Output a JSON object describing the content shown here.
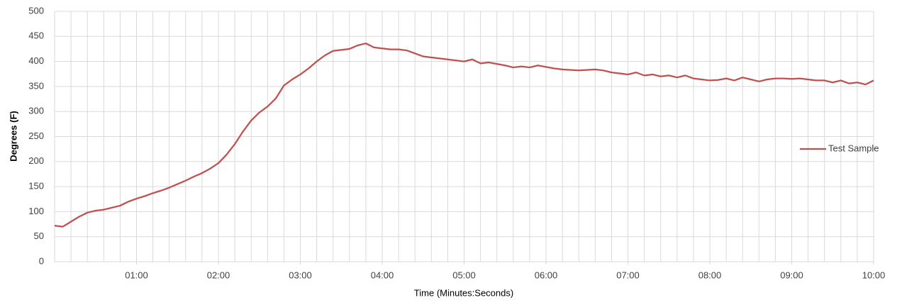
{
  "chart_data": {
    "type": "line",
    "x_label": "Time (Minutes:Seconds)",
    "y_label": "Degrees (F)",
    "x": [
      0,
      6,
      12,
      18,
      24,
      30,
      36,
      42,
      48,
      54,
      60,
      66,
      72,
      78,
      84,
      90,
      96,
      102,
      108,
      114,
      120,
      126,
      132,
      138,
      144,
      150,
      156,
      162,
      168,
      174,
      180,
      186,
      192,
      198,
      204,
      210,
      216,
      222,
      228,
      234,
      240,
      246,
      252,
      258,
      264,
      270,
      276,
      282,
      288,
      294,
      300,
      306,
      312,
      318,
      324,
      330,
      336,
      342,
      348,
      354,
      360,
      366,
      372,
      378,
      384,
      390,
      396,
      402,
      408,
      414,
      420,
      426,
      432,
      438,
      444,
      450,
      456,
      462,
      468,
      474,
      480,
      486,
      492,
      498,
      504,
      510,
      516,
      522,
      528,
      534,
      540,
      546,
      552,
      558,
      564,
      570,
      576,
      582,
      588,
      594,
      600
    ],
    "series": [
      {
        "name": "Test Sample",
        "color": "#c0504d",
        "values": [
          72,
          70,
          80,
          90,
          98,
          102,
          104,
          108,
          112,
          120,
          126,
          131,
          137,
          142,
          148,
          155,
          162,
          170,
          177,
          186,
          197,
          214,
          235,
          260,
          282,
          298,
          310,
          326,
          352,
          364,
          374,
          386,
          400,
          412,
          421,
          423,
          425,
          432,
          436,
          428,
          426,
          424,
          424,
          422,
          416,
          410,
          408,
          406,
          404,
          402,
          400,
          404,
          396,
          398,
          395,
          392,
          388,
          390,
          388,
          392,
          389,
          386,
          384,
          383,
          382,
          383,
          384,
          382,
          378,
          376,
          374,
          378,
          372,
          374,
          370,
          372,
          368,
          372,
          366,
          364,
          362,
          363,
          366,
          362,
          368,
          364,
          360,
          364,
          366,
          366,
          365,
          366,
          364,
          362,
          362,
          358,
          362,
          356,
          358,
          354,
          362
        ]
      }
    ],
    "xlim": [
      0,
      600
    ],
    "xticks": [
      {
        "value": 60,
        "label": "01:00"
      },
      {
        "value": 120,
        "label": "02:00"
      },
      {
        "value": 180,
        "label": "03:00"
      },
      {
        "value": 240,
        "label": "04:00"
      },
      {
        "value": 300,
        "label": "05:00"
      },
      {
        "value": 360,
        "label": "06:00"
      },
      {
        "value": 420,
        "label": "07:00"
      },
      {
        "value": 480,
        "label": "08:00"
      },
      {
        "value": 540,
        "label": "09:00"
      },
      {
        "value": 600,
        "label": "10:00"
      }
    ],
    "xgrid_step": 12,
    "ylim": [
      0,
      500
    ],
    "yticks": [
      0,
      50,
      100,
      150,
      200,
      250,
      300,
      350,
      400,
      450,
      500
    ],
    "grid": true,
    "legend": "right"
  }
}
